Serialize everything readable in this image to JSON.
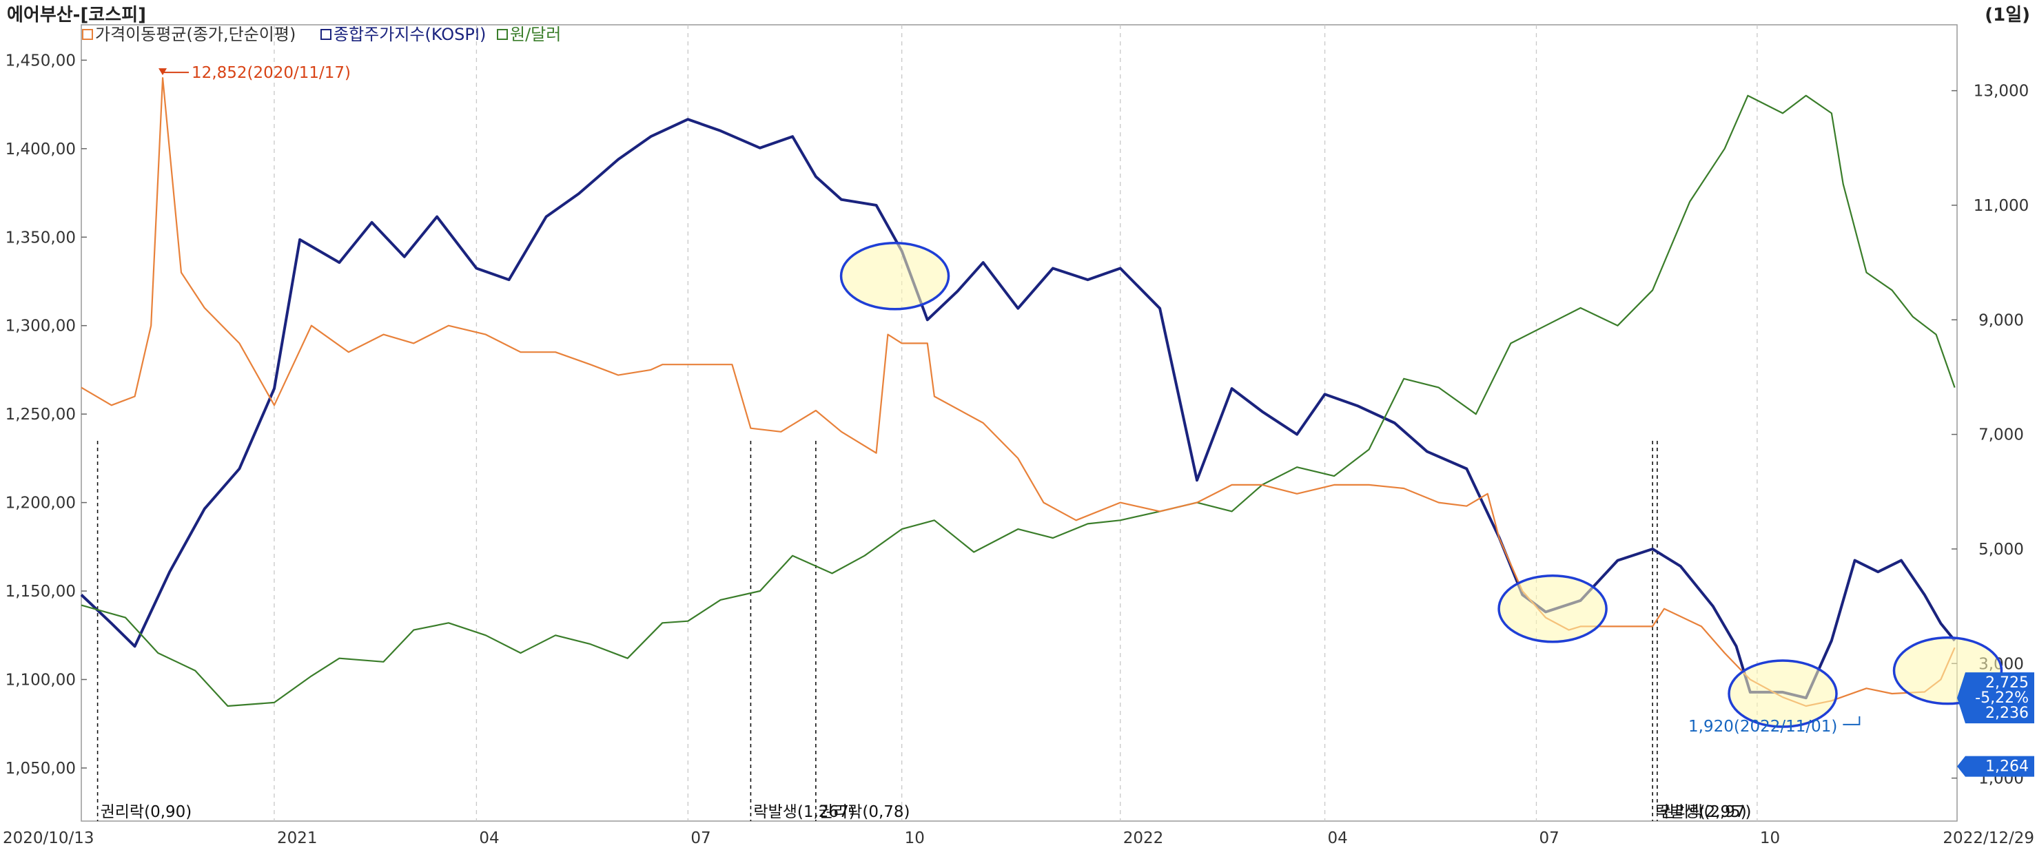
{
  "window": {
    "title": "에어부산-[코스피]",
    "period": "(1일)"
  },
  "legend": [
    {
      "label": "가격이동평균(종가,단순이평)",
      "color": "#e8813a",
      "icon": "checkbox-icon"
    },
    {
      "label": "종합주가지수(KOSPI)",
      "color": "#1a237e",
      "icon": "checkbox-icon"
    },
    {
      "label": "원/달러",
      "color": "#3a7d2a",
      "icon": "checkbox-icon"
    }
  ],
  "chart_data": {
    "type": "line",
    "x_range": [
      "2020/10/13",
      "2022/12/29"
    ],
    "x_ticks": [
      {
        "label": "2020/10/13",
        "date": "2020-10-13"
      },
      {
        "label": "2021",
        "date": "2021-01-04"
      },
      {
        "label": "04",
        "date": "2021-04-01"
      },
      {
        "label": "07",
        "date": "2021-07-01"
      },
      {
        "label": "10",
        "date": "2021-10-01"
      },
      {
        "label": "2022",
        "date": "2022-01-03"
      },
      {
        "label": "04",
        "date": "2022-04-01"
      },
      {
        "label": "07",
        "date": "2022-07-01"
      },
      {
        "label": "10",
        "date": "2022-10-04"
      },
      {
        "label": "2022/12/29",
        "date": "2022-12-29"
      }
    ],
    "left_axis": {
      "range": [
        1020,
        1470
      ],
      "ticks": [
        1050,
        1100,
        1150,
        1200,
        1250,
        1300,
        1350,
        1400,
        1450
      ],
      "tick_labels": [
        "1,050,00",
        "1,100,00",
        "1,150,00",
        "1,200,00",
        "1,250,00",
        "1,300,00",
        "1,350,00",
        "1,400,00",
        "1,450,00"
      ]
    },
    "right_axis": {
      "range": [
        250,
        14150
      ],
      "ticks": [
        1000,
        3000,
        5000,
        7000,
        9000,
        11000,
        13000
      ],
      "tick_labels": [
        "1,000",
        "3,000",
        "5,000",
        "7,000",
        "9,000",
        "11,000",
        "13,000"
      ]
    },
    "grid": true,
    "series": [
      {
        "name": "종합주가지수(KOSPI)",
        "axis": "right",
        "color": "#1a237e",
        "points": [
          [
            "2020-10-13",
            4200
          ],
          [
            "2020-10-26",
            3700
          ],
          [
            "2020-11-05",
            3300
          ],
          [
            "2020-11-20",
            4600
          ],
          [
            "2020-12-05",
            5700
          ],
          [
            "2020-12-20",
            6400
          ],
          [
            "2021-01-04",
            7800
          ],
          [
            "2021-01-15",
            10400
          ],
          [
            "2021-02-01",
            10000
          ],
          [
            "2021-02-15",
            10700
          ],
          [
            "2021-03-01",
            10100
          ],
          [
            "2021-03-15",
            10800
          ],
          [
            "2021-04-01",
            9900
          ],
          [
            "2021-04-15",
            9700
          ],
          [
            "2021-05-01",
            10800
          ],
          [
            "2021-05-15",
            11200
          ],
          [
            "2021-06-01",
            11800
          ],
          [
            "2021-06-15",
            12200
          ],
          [
            "2021-07-01",
            12500
          ],
          [
            "2021-07-15",
            12300
          ],
          [
            "2021-08-01",
            12000
          ],
          [
            "2021-08-15",
            12200
          ],
          [
            "2021-08-25",
            11500
          ],
          [
            "2021-09-05",
            11100
          ],
          [
            "2021-09-20",
            11000
          ],
          [
            "2021-10-01",
            10200
          ],
          [
            "2021-10-12",
            9000
          ],
          [
            "2021-10-25",
            9500
          ],
          [
            "2021-11-05",
            10000
          ],
          [
            "2021-11-20",
            9200
          ],
          [
            "2021-12-05",
            9900
          ],
          [
            "2021-12-20",
            9700
          ],
          [
            "2022-01-03",
            9900
          ],
          [
            "2022-01-20",
            9200
          ],
          [
            "2022-02-05",
            6200
          ],
          [
            "2022-02-20",
            7800
          ],
          [
            "2022-03-05",
            7400
          ],
          [
            "2022-03-20",
            7000
          ],
          [
            "2022-04-01",
            7700
          ],
          [
            "2022-04-15",
            7500
          ],
          [
            "2022-05-01",
            7200
          ],
          [
            "2022-05-15",
            6700
          ],
          [
            "2022-06-01",
            6400
          ],
          [
            "2022-06-15",
            5200
          ],
          [
            "2022-06-25",
            4200
          ],
          [
            "2022-07-05",
            3900
          ],
          [
            "2022-07-20",
            4100
          ],
          [
            "2022-08-05",
            4800
          ],
          [
            "2022-08-20",
            5000
          ],
          [
            "2022-09-01",
            4700
          ],
          [
            "2022-09-15",
            4000
          ],
          [
            "2022-09-25",
            3300
          ],
          [
            "2022-10-01",
            2500
          ],
          [
            "2022-10-15",
            2500
          ],
          [
            "2022-10-25",
            2400
          ],
          [
            "2022-11-05",
            3400
          ],
          [
            "2022-11-15",
            4800
          ],
          [
            "2022-11-25",
            4600
          ],
          [
            "2022-12-05",
            4800
          ],
          [
            "2022-12-15",
            4200
          ],
          [
            "2022-12-22",
            3700
          ],
          [
            "2022-12-28",
            3400
          ]
        ]
      },
      {
        "name": "원/달러",
        "axis": "left",
        "color": "#3a7d2a",
        "points": [
          [
            "2020-10-13",
            1142
          ],
          [
            "2020-11-01",
            1135
          ],
          [
            "2020-11-15",
            1115
          ],
          [
            "2020-12-01",
            1105
          ],
          [
            "2020-12-15",
            1085
          ],
          [
            "2021-01-04",
            1087
          ],
          [
            "2021-01-20",
            1102
          ],
          [
            "2021-02-01",
            1112
          ],
          [
            "2021-02-20",
            1110
          ],
          [
            "2021-03-05",
            1128
          ],
          [
            "2021-03-20",
            1132
          ],
          [
            "2021-04-05",
            1125
          ],
          [
            "2021-04-20",
            1115
          ],
          [
            "2021-05-05",
            1125
          ],
          [
            "2021-05-20",
            1120
          ],
          [
            "2021-06-05",
            1112
          ],
          [
            "2021-06-20",
            1132
          ],
          [
            "2021-07-01",
            1133
          ],
          [
            "2021-07-15",
            1145
          ],
          [
            "2021-08-01",
            1150
          ],
          [
            "2021-08-15",
            1170
          ],
          [
            "2021-09-01",
            1160
          ],
          [
            "2021-09-15",
            1170
          ],
          [
            "2021-10-01",
            1185
          ],
          [
            "2021-10-15",
            1190
          ],
          [
            "2021-11-01",
            1172
          ],
          [
            "2021-11-20",
            1185
          ],
          [
            "2021-12-05",
            1180
          ],
          [
            "2021-12-20",
            1188
          ],
          [
            "2022-01-03",
            1190
          ],
          [
            "2022-01-20",
            1195
          ],
          [
            "2022-02-05",
            1200
          ],
          [
            "2022-02-20",
            1195
          ],
          [
            "2022-03-05",
            1210
          ],
          [
            "2022-03-20",
            1220
          ],
          [
            "2022-04-05",
            1215
          ],
          [
            "2022-04-20",
            1230
          ],
          [
            "2022-05-05",
            1270
          ],
          [
            "2022-05-20",
            1265
          ],
          [
            "2022-06-05",
            1250
          ],
          [
            "2022-06-20",
            1290
          ],
          [
            "2022-07-05",
            1300
          ],
          [
            "2022-07-20",
            1310
          ],
          [
            "2022-08-05",
            1300
          ],
          [
            "2022-08-20",
            1320
          ],
          [
            "2022-09-05",
            1370
          ],
          [
            "2022-09-20",
            1400
          ],
          [
            "2022-09-30",
            1430
          ],
          [
            "2022-10-15",
            1420
          ],
          [
            "2022-10-25",
            1430
          ],
          [
            "2022-11-05",
            1420
          ],
          [
            "2022-11-10",
            1380
          ],
          [
            "2022-11-20",
            1330
          ],
          [
            "2022-12-01",
            1320
          ],
          [
            "2022-12-10",
            1305
          ],
          [
            "2022-12-20",
            1295
          ],
          [
            "2022-12-28",
            1265
          ]
        ]
      },
      {
        "name": "가격이동평균(종가,단순이평)",
        "axis": "left",
        "color": "#e8813a",
        "points": [
          [
            "2020-10-13",
            1265
          ],
          [
            "2020-10-26",
            1255
          ],
          [
            "2020-11-05",
            1260
          ],
          [
            "2020-11-12",
            1300
          ],
          [
            "2020-11-17",
            1440
          ],
          [
            "2020-11-25",
            1330
          ],
          [
            "2020-12-05",
            1310
          ],
          [
            "2020-12-20",
            1290
          ],
          [
            "2021-01-04",
            1255
          ],
          [
            "2021-01-20",
            1300
          ],
          [
            "2021-02-05",
            1285
          ],
          [
            "2021-02-20",
            1295
          ],
          [
            "2021-03-05",
            1290
          ],
          [
            "2021-03-20",
            1300
          ],
          [
            "2021-04-05",
            1295
          ],
          [
            "2021-04-20",
            1285
          ],
          [
            "2021-05-05",
            1285
          ],
          [
            "2021-05-20",
            1278
          ],
          [
            "2021-06-01",
            1272
          ],
          [
            "2021-06-15",
            1275
          ],
          [
            "2021-06-20",
            1278
          ],
          [
            "2021-07-01",
            1278
          ],
          [
            "2021-07-20",
            1278
          ],
          [
            "2021-07-28",
            1242
          ],
          [
            "2021-08-10",
            1240
          ],
          [
            "2021-08-25",
            1252
          ],
          [
            "2021-09-05",
            1240
          ],
          [
            "2021-09-20",
            1228
          ],
          [
            "2021-09-25",
            1295
          ],
          [
            "2021-10-01",
            1290
          ],
          [
            "2021-10-12",
            1290
          ],
          [
            "2021-10-15",
            1260
          ],
          [
            "2021-11-05",
            1245
          ],
          [
            "2021-11-20",
            1225
          ],
          [
            "2021-12-01",
            1200
          ],
          [
            "2021-12-15",
            1190
          ],
          [
            "2022-01-03",
            1200
          ],
          [
            "2022-01-20",
            1195
          ],
          [
            "2022-02-05",
            1200
          ],
          [
            "2022-02-20",
            1210
          ],
          [
            "2022-03-05",
            1210
          ],
          [
            "2022-03-20",
            1205
          ],
          [
            "2022-04-05",
            1210
          ],
          [
            "2022-04-20",
            1210
          ],
          [
            "2022-05-05",
            1208
          ],
          [
            "2022-05-20",
            1200
          ],
          [
            "2022-06-01",
            1198
          ],
          [
            "2022-06-10",
            1205
          ],
          [
            "2022-06-15",
            1180
          ],
          [
            "2022-06-25",
            1150
          ],
          [
            "2022-07-05",
            1135
          ],
          [
            "2022-07-15",
            1128
          ],
          [
            "2022-07-20",
            1130
          ],
          [
            "2022-08-01",
            1130
          ],
          [
            "2022-08-20",
            1130
          ],
          [
            "2022-08-25",
            1140
          ],
          [
            "2022-09-10",
            1130
          ],
          [
            "2022-09-20",
            1115
          ],
          [
            "2022-10-01",
            1100
          ],
          [
            "2022-10-15",
            1090
          ],
          [
            "2022-10-25",
            1085
          ],
          [
            "2022-11-05",
            1088
          ],
          [
            "2022-11-20",
            1095
          ],
          [
            "2022-12-01",
            1092
          ],
          [
            "2022-12-15",
            1093
          ],
          [
            "2022-12-22",
            1100
          ],
          [
            "2022-12-28",
            1118
          ]
        ]
      }
    ],
    "annotations": {
      "high": {
        "label": "12,852(2020/11/17)",
        "date": "2020-11-17",
        "value": 1440
      },
      "low": {
        "label": "1,920(2022/11/01)",
        "date": "2022-11-01",
        "value": 1080
      },
      "events": [
        {
          "label": "권리락(0,90)",
          "date": "2020-10-20"
        },
        {
          "label": "락발생(1,267)",
          "date": "2021-07-28"
        },
        {
          "label": "권리락(0,78)",
          "date": "2021-08-25"
        },
        {
          "label": "락발생(2,95)",
          "date": "2022-08-20"
        },
        {
          "label": "권리락(2,97)",
          "date": "2022-08-22"
        }
      ],
      "highlight_regions": [
        {
          "date": "2021-09-28",
          "value": 1328
        },
        {
          "date": "2022-07-08",
          "value": 1140
        },
        {
          "date": "2022-10-15",
          "value": 1092
        },
        {
          "date": "2022-12-25",
          "value": 1105
        }
      ]
    },
    "badges": [
      {
        "lines": [
          "2,725",
          "-5,22%",
          "2,236"
        ],
        "value": 2725,
        "axis": "right"
      },
      {
        "lines": [
          "1,264"
        ],
        "value": 1264,
        "axis": "right"
      }
    ]
  }
}
